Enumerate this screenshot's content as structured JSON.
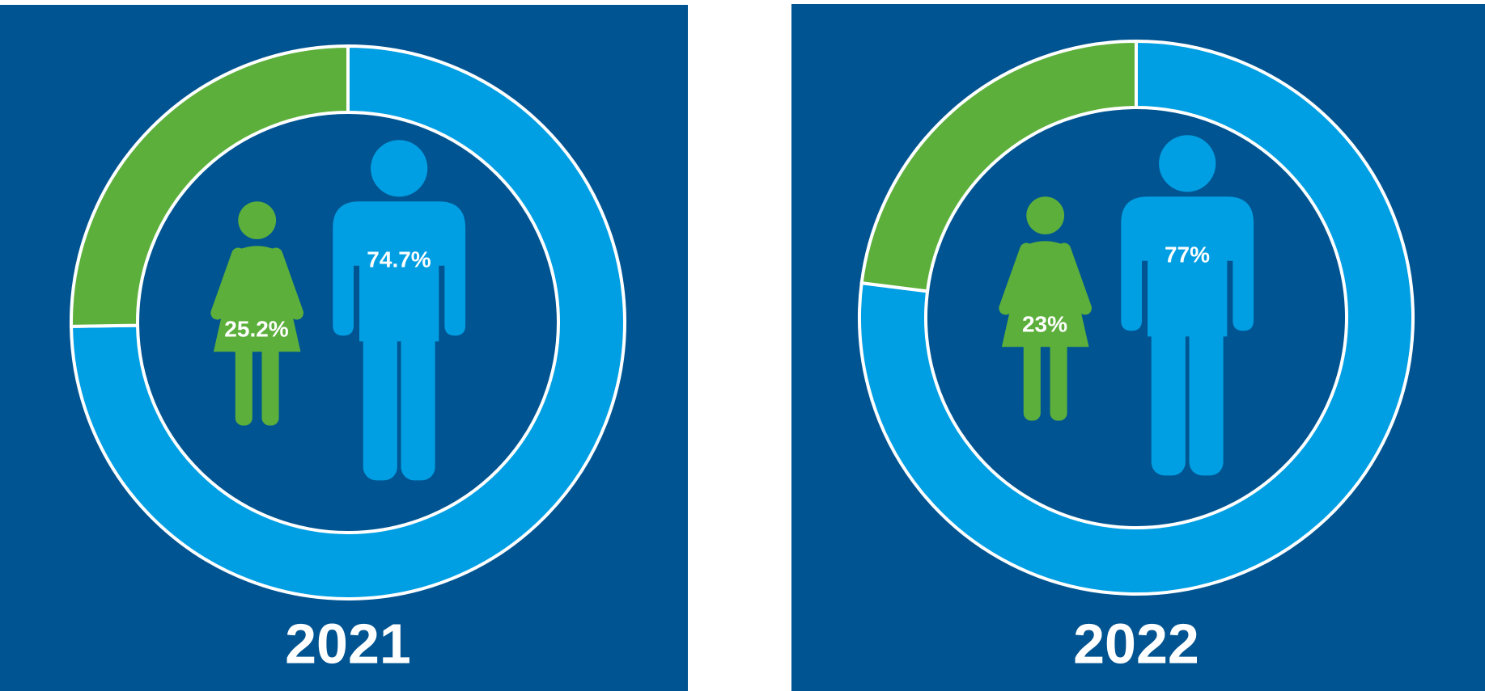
{
  "chart_data": [
    {
      "type": "donut",
      "title": "2021",
      "categories": [
        null,
        null
      ],
      "values": [
        25.2,
        74.7
      ],
      "value_labels": [
        "25.2%",
        "74.7%"
      ],
      "colors": [
        "#5caf3a",
        "#009fe3"
      ]
    },
    {
      "type": "donut",
      "title": "2022",
      "categories": [
        null,
        null
      ],
      "values": [
        23,
        77
      ],
      "value_labels": [
        "23%",
        "77%"
      ],
      "colors": [
        "#5caf3a",
        "#009fe3"
      ]
    }
  ]
}
